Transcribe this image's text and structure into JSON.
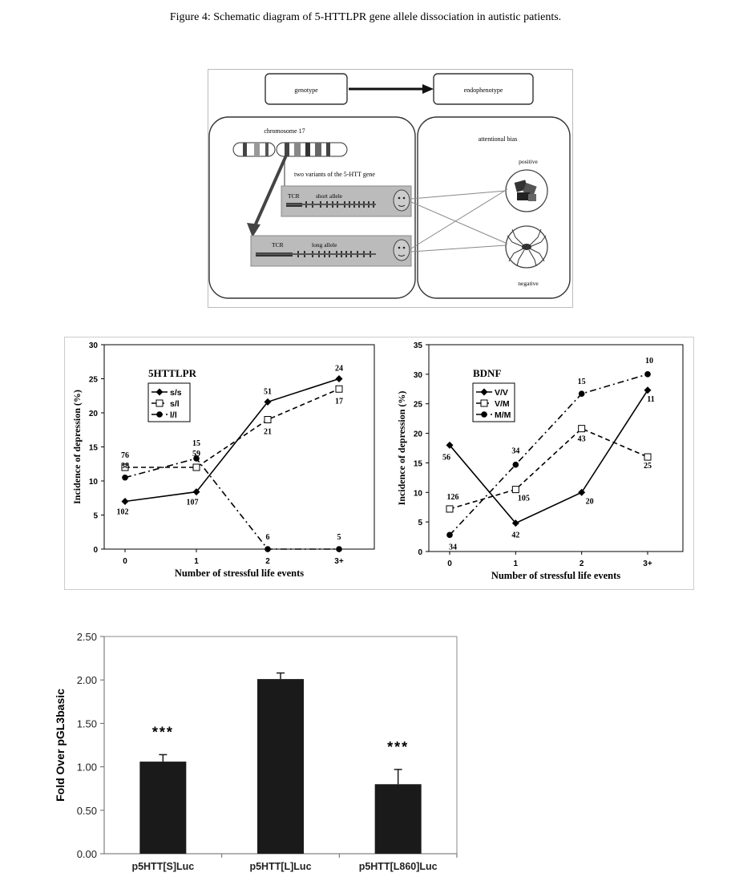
{
  "figure_title": "Figure 4: Schematic diagram of 5-HTTLPR gene allele dissociation in autistic patients.",
  "schematic": {
    "genotype_label": "genotype",
    "endophenotype_label": "endophenotype",
    "chromosome_label": "chromosome 17",
    "variants_label": "two variants of the 5-HTT gene",
    "short_allele": {
      "tcr": "TCR",
      "label": "short allele"
    },
    "long_allele": {
      "tcr": "TCR",
      "label": "long allele"
    },
    "attentional_bias_label": "attentional bias",
    "positive_label": "positive",
    "negative_label": "negative"
  },
  "chart_data": [
    {
      "type": "line",
      "title": "5HTTLPR",
      "xlabel": "Number of stressful life events",
      "ylabel": "Incidence of depression (%)",
      "categories": [
        "0",
        "1",
        "2",
        "3+"
      ],
      "ylim": [
        0,
        30
      ],
      "yticks": [
        "0",
        "5",
        "10",
        "15",
        "20",
        "25",
        "30"
      ],
      "legend": "top-left",
      "series": [
        {
          "name": "s/s",
          "values": [
            7,
            8.4,
            21.6,
            25
          ],
          "labels": [
            "102",
            "107",
            "51",
            "24"
          ],
          "marker": "filled-diamond",
          "line": "solid"
        },
        {
          "name": "s/l",
          "values": [
            12,
            12,
            19,
            23.5
          ],
          "labels": [
            "76",
            "59",
            "21",
            "17"
          ],
          "marker": "open-square",
          "line": "dashed"
        },
        {
          "name": "l/l",
          "values": [
            10.5,
            13.3,
            0,
            0
          ],
          "labels": [
            "38",
            "15",
            "6",
            "5"
          ],
          "marker": "filled-circle",
          "line": "dash-dot"
        }
      ]
    },
    {
      "type": "line",
      "title": "BDNF",
      "xlabel": "Number of stressful life events",
      "ylabel": "Incidence of depression (%)",
      "categories": [
        "0",
        "1",
        "2",
        "3+"
      ],
      "ylim": [
        0,
        35
      ],
      "yticks": [
        "0",
        "5",
        "10",
        "15",
        "20",
        "25",
        "30",
        "35"
      ],
      "legend": "top-left",
      "series": [
        {
          "name": "V/V",
          "values": [
            18,
            4.8,
            10,
            27.3
          ],
          "labels": [
            "56",
            "42",
            "20",
            "11"
          ],
          "marker": "filled-diamond",
          "line": "solid"
        },
        {
          "name": "V/M",
          "values": [
            7.2,
            10.5,
            20.8,
            16
          ],
          "labels": [
            "126",
            "105",
            "43",
            "25"
          ],
          "marker": "open-square",
          "line": "dashed"
        },
        {
          "name": "M/M",
          "values": [
            2.8,
            14.7,
            26.7,
            30
          ],
          "labels": [
            "34",
            "34",
            "15",
            "10"
          ],
          "marker": "filled-circle",
          "line": "dash-dot"
        }
      ]
    },
    {
      "type": "bar",
      "title": "",
      "xlabel": "",
      "ylabel": "Fold Over pGL3basic",
      "categories": [
        "p5HTT[S]Luc",
        "p5HTT[L]Luc",
        "p5HTT[L860]Luc"
      ],
      "values": [
        1.06,
        2.01,
        0.8
      ],
      "errors": [
        0.08,
        0.07,
        0.17
      ],
      "significance": [
        "***",
        "",
        "***"
      ],
      "ylim": [
        0,
        2.5
      ],
      "yticks": [
        "0.00",
        "0.50",
        "1.00",
        "1.50",
        "2.00",
        "2.50"
      ]
    }
  ]
}
